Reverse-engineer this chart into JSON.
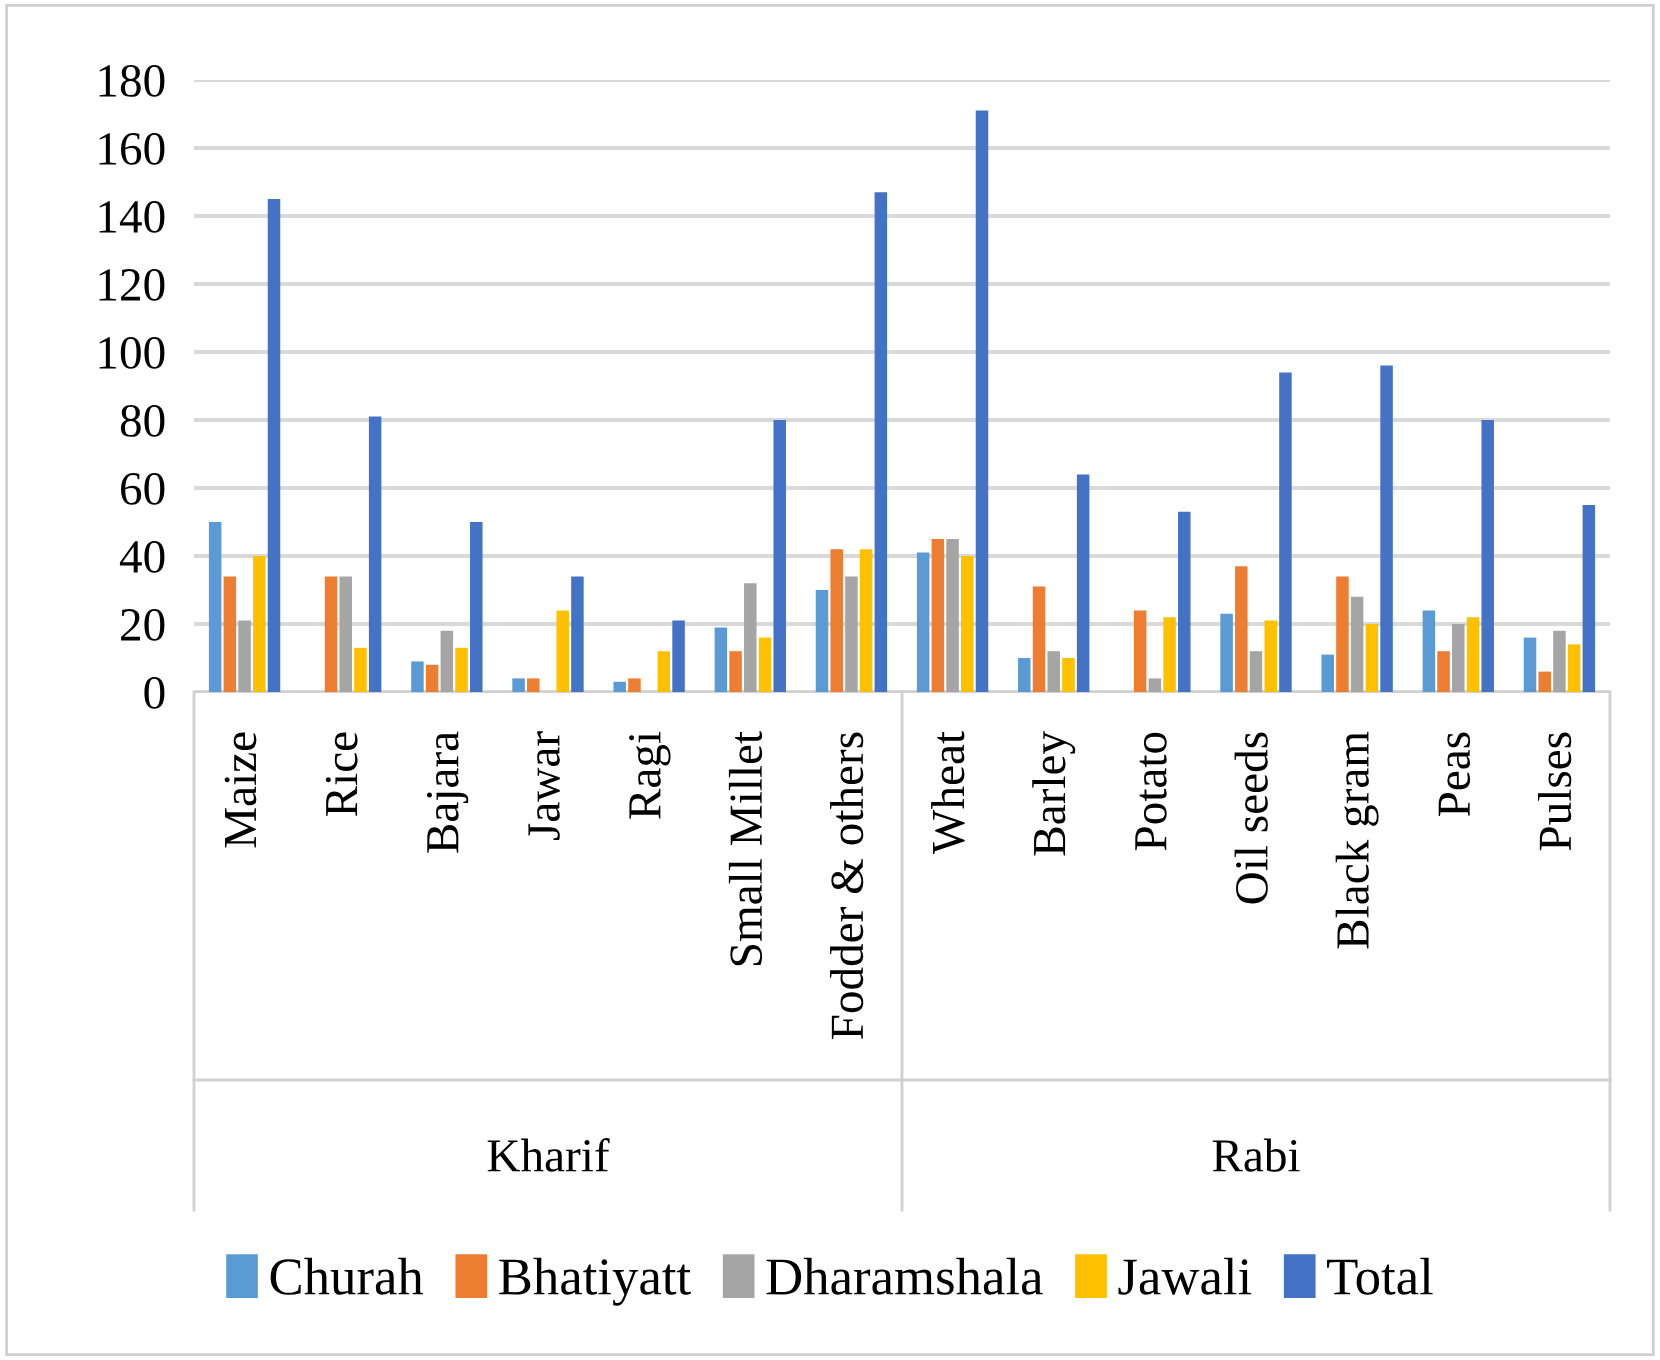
{
  "chart_data": {
    "type": "bar",
    "categories": [
      "Maize",
      "Rice",
      "Bajara",
      "Jawar",
      "Ragi",
      "Small Millet",
      "Fodder & others",
      "Wheat",
      "Barley",
      "Potato",
      "Oil seeds",
      "Black gram",
      "Peas",
      "Pulses"
    ],
    "series": [
      {
        "name": "Churah",
        "color": "#5b9bd5",
        "values": [
          50,
          0,
          9,
          4,
          3,
          19,
          30,
          41,
          10,
          0,
          23,
          11,
          24,
          16
        ]
      },
      {
        "name": "Bhatiyatt",
        "color": "#ed7d31",
        "values": [
          34,
          34,
          8,
          4,
          4,
          12,
          42,
          45,
          31,
          24,
          37,
          34,
          12,
          6
        ]
      },
      {
        "name": "Dharamshala",
        "color": "#a5a5a5",
        "values": [
          21,
          34,
          18,
          0,
          0,
          32,
          34,
          45,
          12,
          4,
          12,
          28,
          20,
          18
        ]
      },
      {
        "name": "Jawali",
        "color": "#ffc000",
        "values": [
          40,
          13,
          13,
          24,
          12,
          16,
          42,
          40,
          10,
          22,
          21,
          20,
          22,
          14
        ]
      },
      {
        "name": "Total",
        "color": "#4472c4",
        "values": [
          145,
          81,
          50,
          34,
          21,
          80,
          147,
          171,
          64,
          53,
          94,
          96,
          80,
          55
        ]
      }
    ],
    "ylim": [
      0,
      180
    ],
    "yticks": [
      0,
      20,
      40,
      60,
      80,
      100,
      120,
      140,
      160,
      180
    ],
    "annotations": [
      "Kharif",
      "Rabi"
    ],
    "grid": "y",
    "legend": "bottom"
  }
}
